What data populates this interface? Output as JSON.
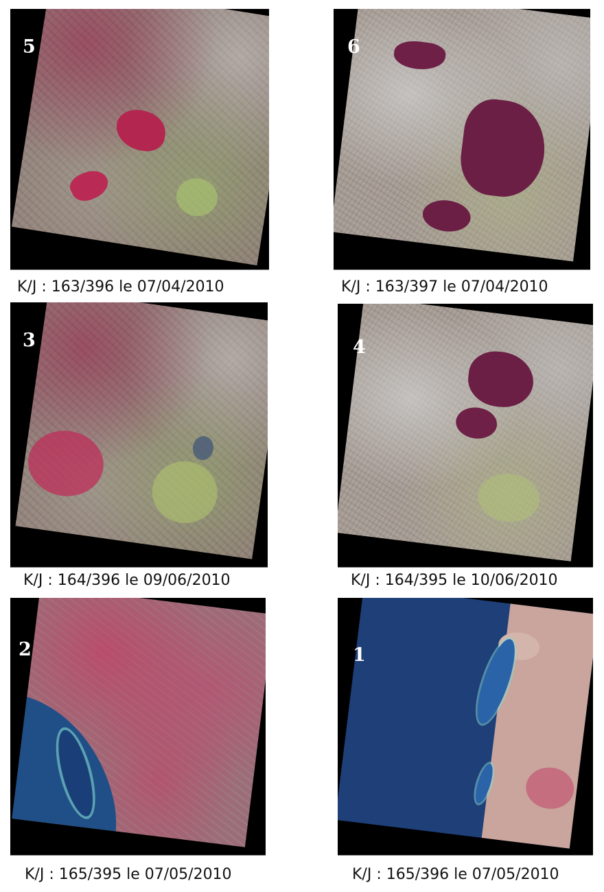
{
  "panels": [
    {
      "number": "5",
      "caption": "K/J : 163/396 le 07/04/2010"
    },
    {
      "number": "6",
      "caption": "K/J : 163/397 le 07/04/2010"
    },
    {
      "number": "3",
      "caption": "K/J : 164/396 le 09/06/2010"
    },
    {
      "number": "4",
      "caption": "K/J : 164/395 le 10/06/2010"
    },
    {
      "number": "2",
      "caption": "K/J : 165/395 le 07/05/2010"
    },
    {
      "number": "1",
      "caption": "K/J : 165/396 le 07/05/2010"
    }
  ]
}
